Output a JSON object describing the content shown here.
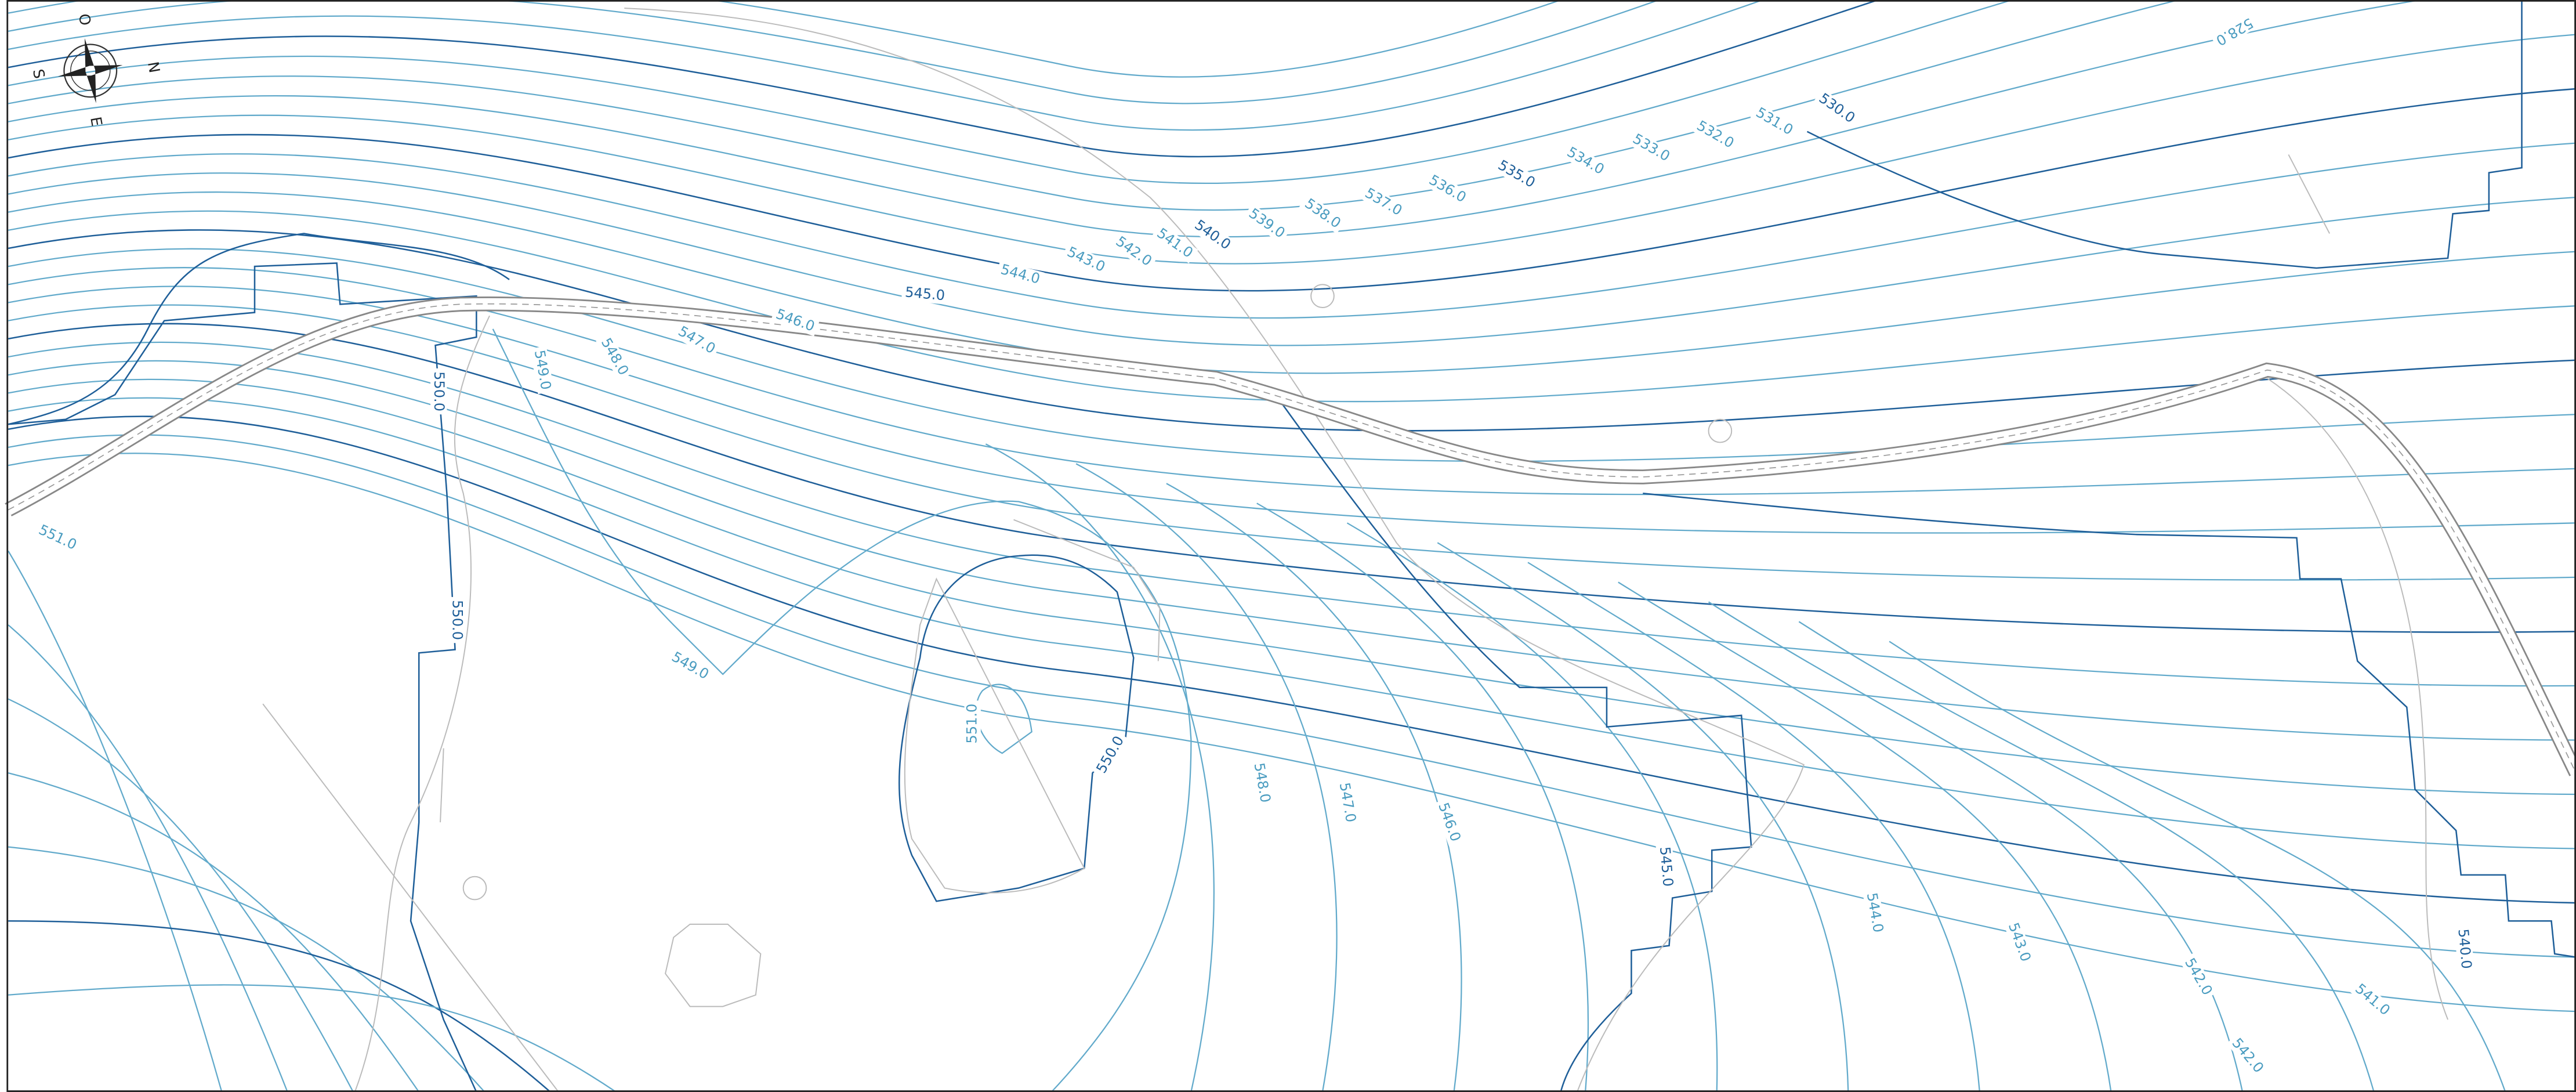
{
  "compass": {
    "west": "O",
    "north": "N",
    "south": "S",
    "east": "E"
  },
  "contour_labels": [
    "545.0",
    "546.0",
    "544.0",
    "543.0",
    "542.0",
    "541.0",
    "540.0",
    "539.0",
    "538.0",
    "537.0",
    "536.0",
    "535.0",
    "534.0",
    "533.0",
    "532.0",
    "531.0",
    "530.0",
    "528.0",
    "547.0",
    "548.0",
    "549.0",
    "550.0",
    "551.0",
    "550.0",
    "549.0",
    "551.0",
    "550.0",
    "548.0",
    "547.0",
    "546.0",
    "545.0",
    "544.0",
    "543.0",
    "542.0",
    "542.0",
    "541.0",
    "540.0"
  ]
}
